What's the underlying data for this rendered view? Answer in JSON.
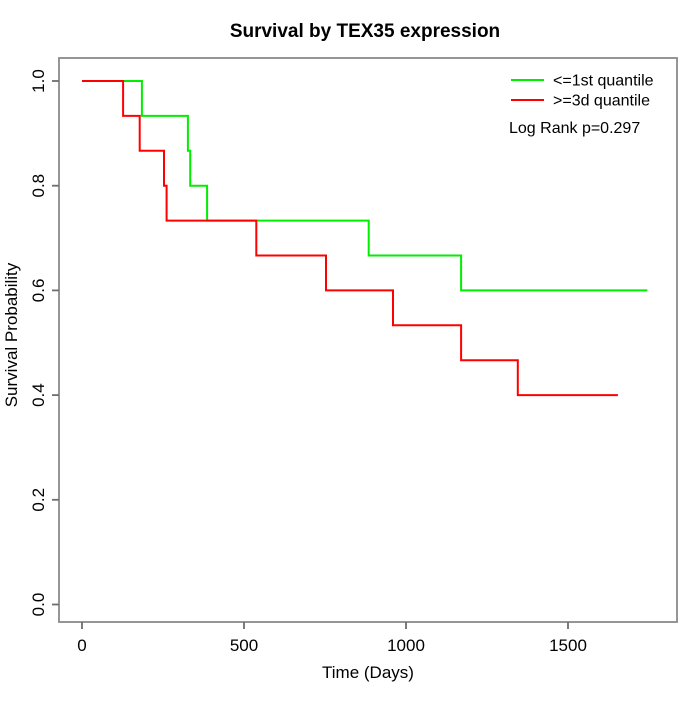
{
  "chart_data": {
    "type": "line",
    "subtype": "kaplan-meier-step",
    "title": "Survival by TEX35 expression",
    "xlabel": "Time (Days)",
    "ylabel": "Survival Probability",
    "xlim": [
      0,
      1750
    ],
    "ylim": [
      0.0,
      1.0
    ],
    "grid": false,
    "legend_position": "top-right",
    "annotation": "Log Rank p=0.297",
    "frame_color": "#8a8a8a",
    "tick_color": "#6e6e6e",
    "text_color": "#000000",
    "x_ticks": [
      {
        "value": 0,
        "label": "0"
      },
      {
        "value": 500,
        "label": "500"
      },
      {
        "value": 1000,
        "label": "1000"
      },
      {
        "value": 1500,
        "label": "1500"
      }
    ],
    "y_ticks": [
      {
        "value": 0.0,
        "label": "0.0"
      },
      {
        "value": 0.2,
        "label": "0.2"
      },
      {
        "value": 0.4,
        "label": "0.4"
      },
      {
        "value": 0.6,
        "label": "0.6"
      },
      {
        "value": 0.8,
        "label": "0.8"
      },
      {
        "value": 1.0,
        "label": "1.0"
      }
    ],
    "series": [
      {
        "name": "<=1st quantile",
        "color": "#00ee00",
        "steps": [
          [
            0,
            1.0
          ],
          [
            185,
            0.9333
          ],
          [
            327,
            0.8667
          ],
          [
            334,
            0.8
          ],
          [
            386,
            0.7333
          ],
          [
            885,
            0.6667
          ],
          [
            1170,
            0.6
          ],
          [
            1745,
            0.6
          ]
        ]
      },
      {
        "name": ">=3d quantile",
        "color": "#ff0000",
        "steps": [
          [
            0,
            1.0
          ],
          [
            127,
            0.9333
          ],
          [
            178,
            0.8667
          ],
          [
            253,
            0.8
          ],
          [
            261,
            0.7333
          ],
          [
            538,
            0.6667
          ],
          [
            753,
            0.6
          ],
          [
            960,
            0.5333
          ],
          [
            1170,
            0.4667
          ],
          [
            1345,
            0.4
          ],
          [
            1654,
            0.4
          ]
        ]
      }
    ]
  }
}
